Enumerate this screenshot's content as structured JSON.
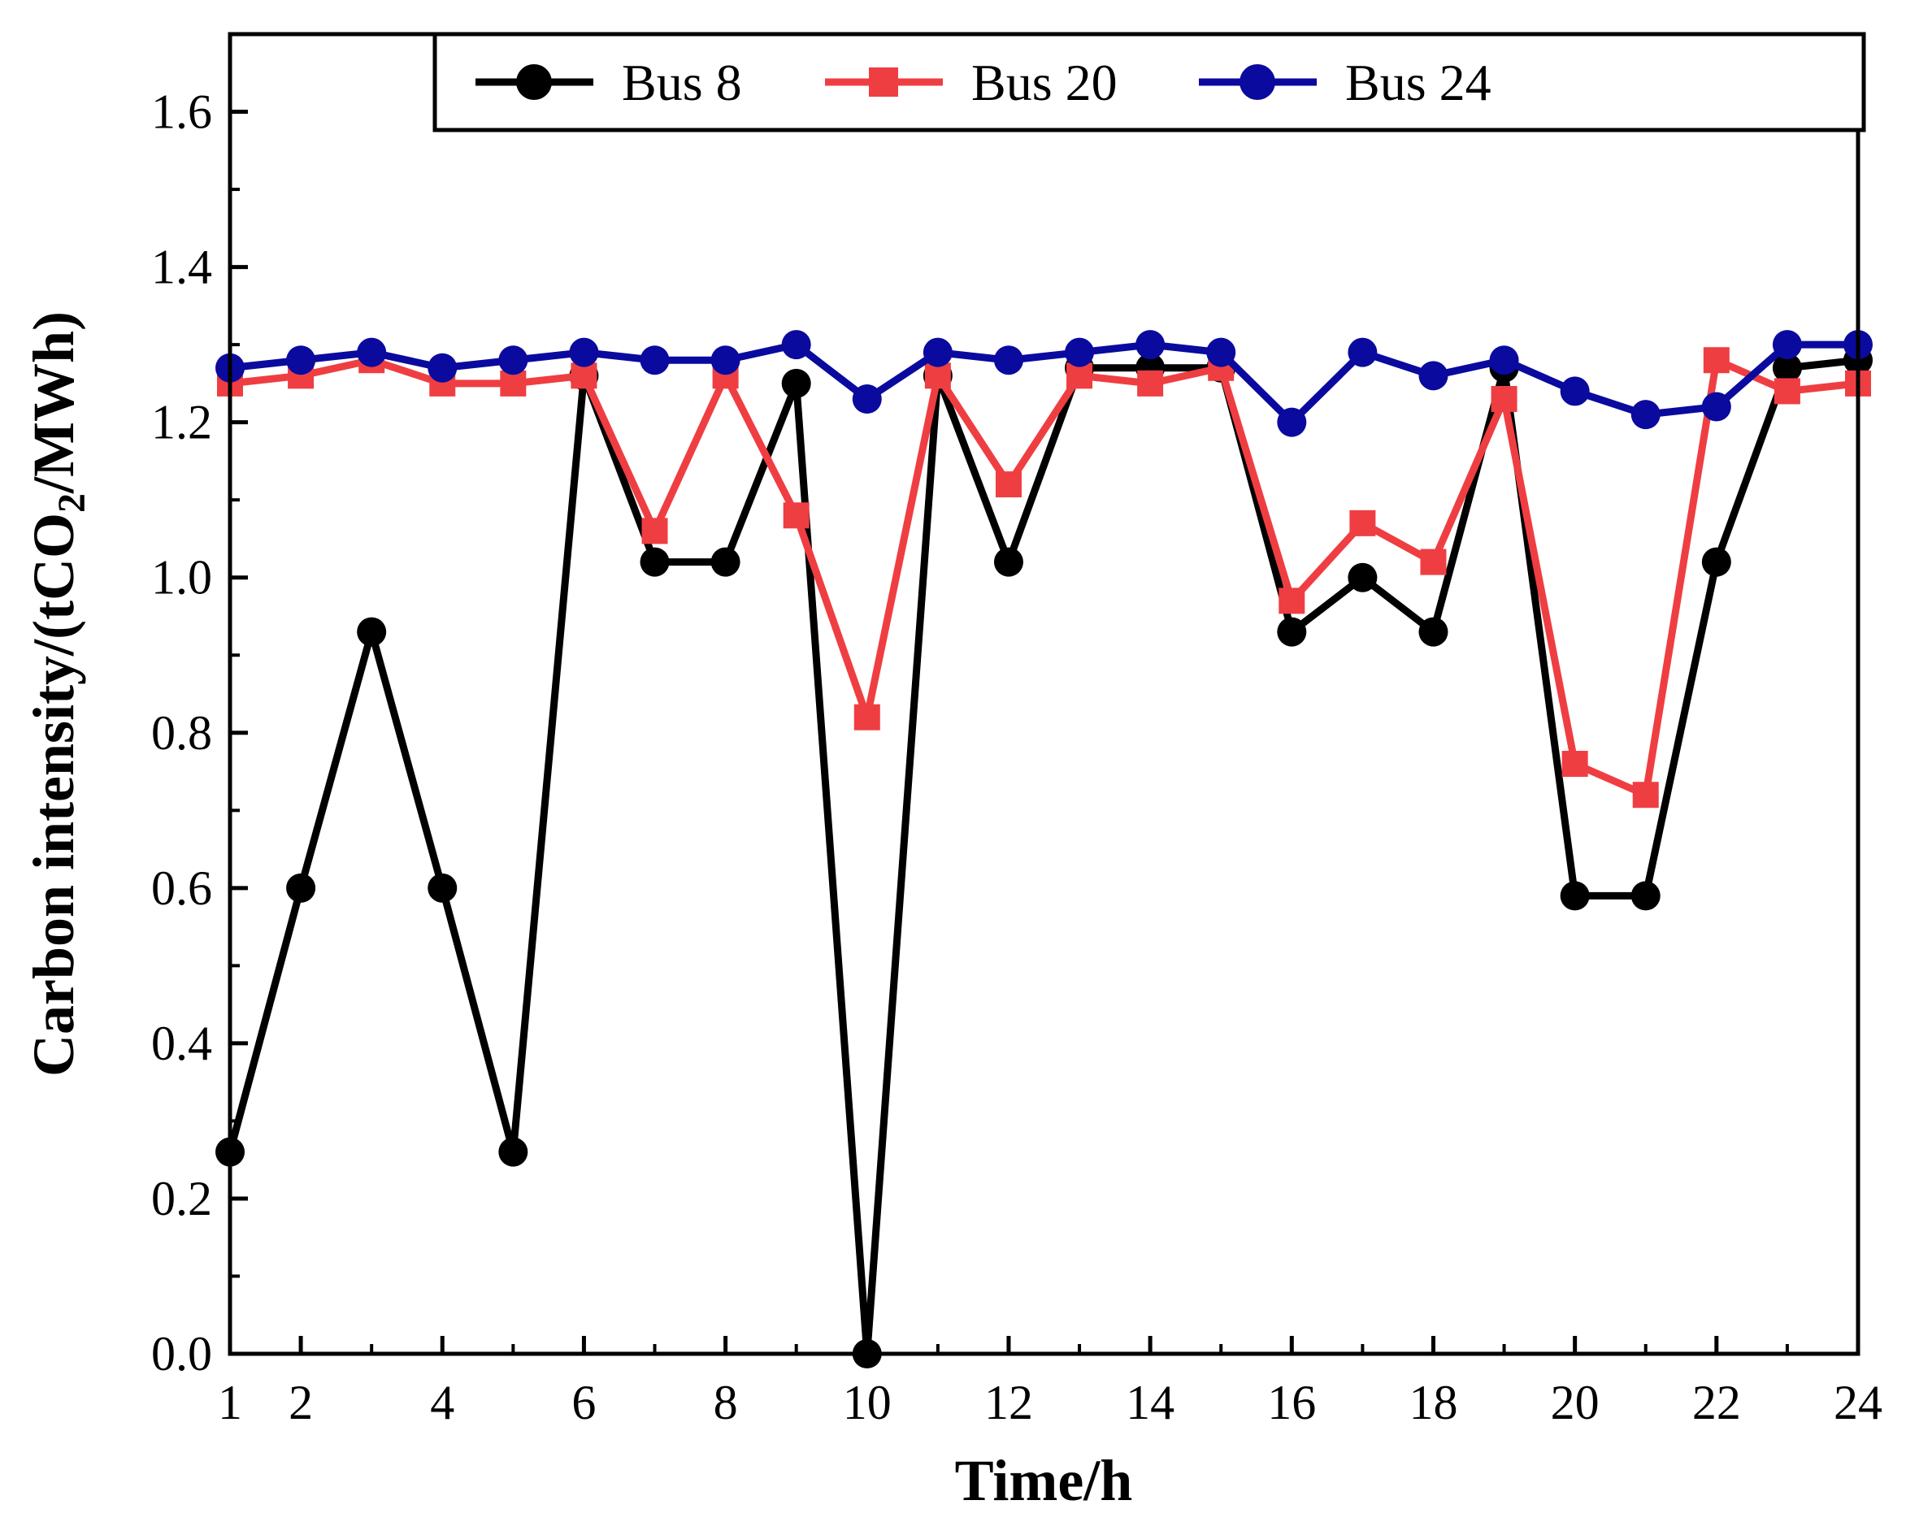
{
  "chart_data": {
    "type": "line",
    "title": "",
    "xlabel": "Time/h",
    "ylabel": {
      "prefix": "Carbon intensity/(tCO",
      "subscript": "2",
      "suffix": "/MWh)"
    },
    "xlim": [
      1,
      24
    ],
    "ylim": [
      0,
      1.7
    ],
    "x_ticks": [
      1,
      2,
      4,
      6,
      8,
      10,
      12,
      14,
      16,
      18,
      20,
      22,
      24
    ],
    "y_ticks": [
      "0.0",
      "0.2",
      "0.4",
      "0.6",
      "0.8",
      "1.0",
      "1.2",
      "1.4",
      "1.6"
    ],
    "x": [
      1,
      2,
      3,
      4,
      5,
      6,
      7,
      8,
      9,
      10,
      11,
      12,
      13,
      14,
      15,
      16,
      17,
      18,
      19,
      20,
      21,
      22,
      23,
      24
    ],
    "legend_position": "top-center",
    "grid": false,
    "series": [
      {
        "name": "Bus 8",
        "color": "#000000",
        "marker": "circle",
        "values": [
          0.26,
          0.6,
          0.93,
          0.6,
          0.26,
          1.26,
          1.02,
          1.02,
          1.25,
          0.0,
          1.26,
          1.02,
          1.27,
          1.27,
          1.27,
          0.93,
          1.0,
          0.93,
          1.27,
          0.59,
          0.59,
          1.02,
          1.27,
          1.28
        ]
      },
      {
        "name": "Bus 20",
        "color": "#ef3e42",
        "marker": "square",
        "values": [
          1.25,
          1.26,
          1.28,
          1.25,
          1.25,
          1.26,
          1.06,
          1.26,
          1.08,
          0.82,
          1.26,
          1.12,
          1.26,
          1.25,
          1.27,
          0.97,
          1.07,
          1.02,
          1.23,
          0.76,
          0.72,
          1.28,
          1.24,
          1.25
        ]
      },
      {
        "name": "Bus 24",
        "color": "#0a0a9f",
        "marker": "circle",
        "values": [
          1.27,
          1.28,
          1.29,
          1.27,
          1.28,
          1.29,
          1.28,
          1.28,
          1.3,
          1.23,
          1.29,
          1.28,
          1.29,
          1.3,
          1.29,
          1.2,
          1.29,
          1.26,
          1.28,
          1.24,
          1.21,
          1.22,
          1.3,
          1.3
        ]
      }
    ]
  }
}
